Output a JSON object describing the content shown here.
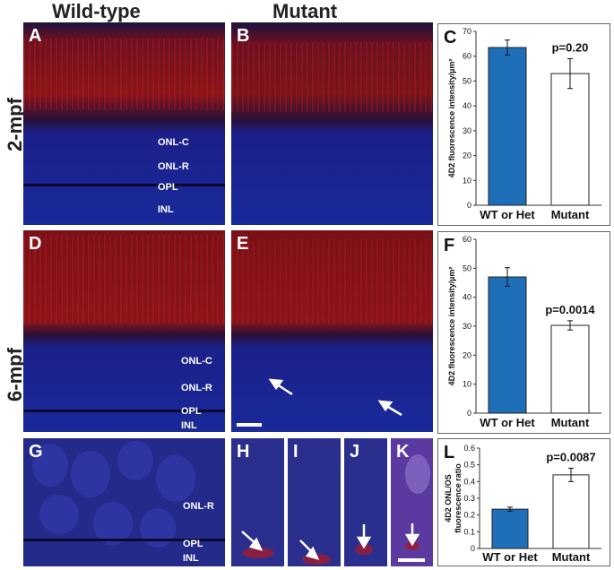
{
  "headers": {
    "wildtype": "Wild-type",
    "mutant": "Mutant"
  },
  "rows": {
    "row1": "2-mpf",
    "row2": "6-mpf"
  },
  "panels": {
    "A": "A",
    "B": "B",
    "C": "C",
    "D": "D",
    "E": "E",
    "F": "F",
    "G": "G",
    "H": "H",
    "I": "I",
    "J": "J",
    "K": "K",
    "L": "L"
  },
  "layers": {
    "onlc": "ONL-C",
    "onlr": "ONL-R",
    "opl": "OPL",
    "inl": "INL"
  },
  "colors": {
    "wt_bar": "#1F6FB8",
    "mut_bar": "#FFFFFF",
    "red_stain": "#D02020",
    "nuclei": "#2A33C8"
  },
  "chart_data": [
    {
      "type": "bar",
      "panel": "C",
      "categories": [
        "WT or Het",
        "Mutant"
      ],
      "values": [
        63.5,
        53
      ],
      "errors": [
        3,
        6
      ],
      "ylabel": "4D2 fluorescence intensity/µm²",
      "ylim": [
        0,
        70
      ],
      "yticks": [
        0,
        10,
        20,
        30,
        40,
        50,
        60,
        70
      ],
      "annotation": "p=0.20"
    },
    {
      "type": "bar",
      "panel": "F",
      "categories": [
        "WT or Het",
        "Mutant"
      ],
      "values": [
        47,
        30.3
      ],
      "errors": [
        3.2,
        1.6
      ],
      "ylabel": "4D2 fluorescence intensity/µm²",
      "ylim": [
        0,
        60
      ],
      "yticks": [
        0,
        10,
        20,
        30,
        40,
        50,
        60
      ],
      "annotation": "p=0.0014"
    },
    {
      "type": "bar",
      "panel": "L",
      "categories": [
        "WT or Het",
        "Mutant"
      ],
      "values": [
        0.235,
        0.44
      ],
      "errors": [
        0.012,
        0.04
      ],
      "ylabel_lines": [
        "4D2 ONL/OS",
        "fluorescence ratio"
      ],
      "ylim": [
        0,
        0.6
      ],
      "yticks": [
        0,
        0.1,
        0.2,
        0.3,
        0.4,
        0.5,
        0.6
      ],
      "annotation": "p=0.0087"
    }
  ]
}
